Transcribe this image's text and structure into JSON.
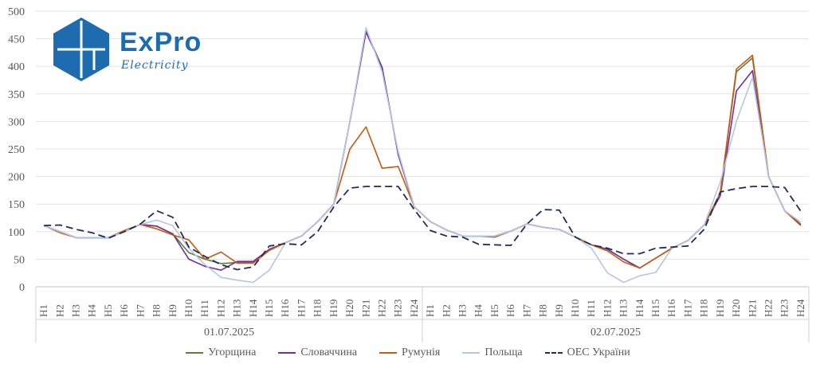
{
  "logo": {
    "brand": "ExPro",
    "tagline": "Electricity",
    "color": "#1e6bb0"
  },
  "chart_data": {
    "type": "line",
    "ylim": [
      0,
      500
    ],
    "y_ticks": [
      0,
      50,
      100,
      150,
      200,
      250,
      300,
      350,
      400,
      450,
      500
    ],
    "grid": "horizontal",
    "legend_position": "bottom",
    "x": [
      "H1",
      "H2",
      "H3",
      "H4",
      "H5",
      "H6",
      "H7",
      "H8",
      "H9",
      "H10",
      "H11",
      "H12",
      "H13",
      "H14",
      "H15",
      "H16",
      "H17",
      "H18",
      "H19",
      "H20",
      "H21",
      "H22",
      "H23",
      "H24",
      "H1",
      "H2",
      "H3",
      "H4",
      "H5",
      "H6",
      "H7",
      "H8",
      "H9",
      "H10",
      "H11",
      "H12",
      "H13",
      "H14",
      "H15",
      "H16",
      "H17",
      "H18",
      "H19",
      "H20",
      "H21",
      "H22",
      "H23",
      "H24"
    ],
    "groups": [
      {
        "label": "01.07.2025",
        "start": 0,
        "end": 23
      },
      {
        "label": "02.07.2025",
        "start": 24,
        "end": 47
      }
    ],
    "series": [
      {
        "name": "Угорщина",
        "color": "#5b7f3a",
        "dash": "",
        "values": [
          111,
          100,
          89,
          89,
          89,
          100,
          113,
          110,
          96,
          62,
          50,
          42,
          44,
          44,
          66,
          80,
          92,
          118,
          150,
          300,
          465,
          398,
          240,
          145,
          118,
          103,
          92,
          92,
          92,
          101,
          114,
          108,
          104,
          90,
          76,
          68,
          50,
          34,
          52,
          70,
          84,
          112,
          170,
          390,
          415,
          200,
          138,
          113
        ]
      },
      {
        "name": "Словаччина",
        "color": "#7030a0",
        "dash": "",
        "values": [
          111,
          100,
          89,
          89,
          89,
          100,
          113,
          110,
          96,
          50,
          37,
          30,
          46,
          46,
          68,
          80,
          92,
          118,
          150,
          300,
          462,
          398,
          240,
          145,
          118,
          103,
          92,
          92,
          92,
          101,
          114,
          108,
          104,
          90,
          76,
          68,
          50,
          34,
          52,
          70,
          84,
          112,
          165,
          355,
          392,
          200,
          138,
          113
        ]
      },
      {
        "name": "Румунія",
        "color": "#c55a11",
        "dash": "",
        "values": [
          111,
          98,
          89,
          89,
          89,
          102,
          113,
          105,
          94,
          85,
          50,
          63,
          43,
          43,
          66,
          80,
          92,
          118,
          150,
          250,
          290,
          215,
          218,
          145,
          118,
          103,
          92,
          92,
          90,
          101,
          114,
          108,
          104,
          90,
          76,
          65,
          45,
          34,
          52,
          70,
          84,
          112,
          170,
          395,
          420,
          200,
          138,
          111
        ]
      },
      {
        "name": "Польща",
        "color": "#b4c7e7",
        "dash": "",
        "values": [
          111,
          100,
          89,
          89,
          89,
          100,
          113,
          121,
          111,
          70,
          40,
          17,
          12,
          8,
          30,
          80,
          92,
          118,
          150,
          300,
          470,
          390,
          245,
          145,
          118,
          103,
          92,
          92,
          92,
          101,
          114,
          108,
          104,
          90,
          70,
          25,
          8,
          20,
          26,
          70,
          84,
          112,
          190,
          300,
          380,
          200,
          138,
          117
        ]
      },
      {
        "name": "ОЕС України",
        "color": "#1f2f57",
        "dash": "9,5",
        "values": [
          111,
          112,
          104,
          98,
          88,
          100,
          114,
          138,
          126,
          72,
          55,
          40,
          31,
          36,
          74,
          78,
          76,
          100,
          145,
          179,
          182,
          182,
          182,
          140,
          102,
          92,
          90,
          77,
          76,
          75,
          114,
          140,
          139,
          90,
          76,
          70,
          60,
          60,
          70,
          72,
          74,
          104,
          172,
          178,
          182,
          182,
          180,
          137
        ]
      }
    ]
  }
}
